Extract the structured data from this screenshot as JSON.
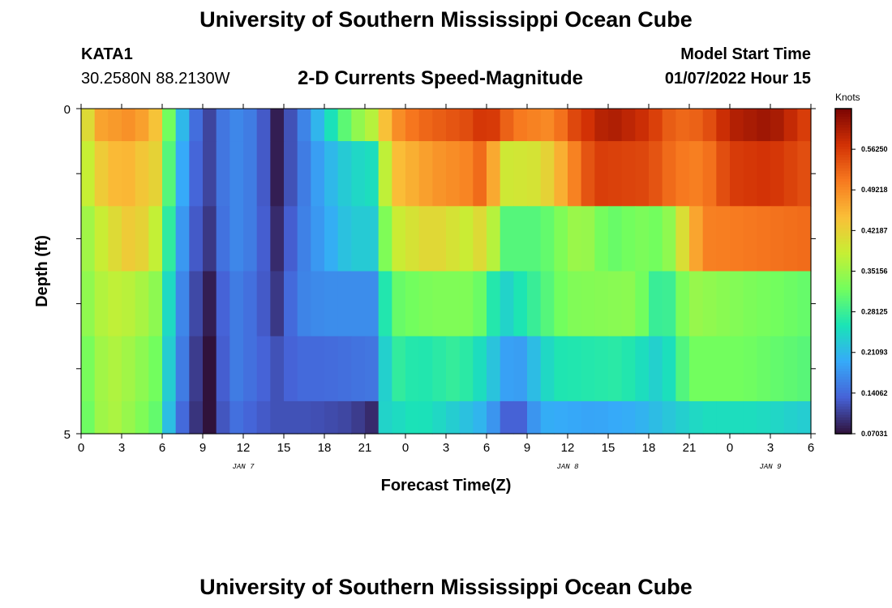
{
  "page": {
    "title": "University of Southern Mississippi Ocean Cube",
    "station": "KATA1",
    "coords": "30.2580N  88.2130W",
    "subtitle": "2-D Currents Speed-Magnitude",
    "model_label": "Model Start Time",
    "model_time": "01/07/2022 Hour 15",
    "bottom_title": "University of Southern Mississippi Ocean Cube"
  },
  "chart_data": {
    "type": "heatmap",
    "title": "2-D Currents Speed-Magnitude",
    "xlabel": "Forecast Time(Z)",
    "ylabel": "Depth (ft)",
    "x_ticks": [
      "0",
      "3",
      "6",
      "9",
      "12",
      "15",
      "18",
      "21",
      "0",
      "3",
      "6",
      "9",
      "12",
      "15",
      "18",
      "21",
      "0",
      "3",
      "6"
    ],
    "date_labels": [
      {
        "label": "JAN 7",
        "hour_index": 12
      },
      {
        "label": "JAN 8",
        "hour_index": 36
      },
      {
        "label": "JAN 9",
        "hour_index": 51
      }
    ],
    "x_range_hours": [
      0,
      54
    ],
    "y_ticks": [
      "0",
      "5"
    ],
    "y_range": [
      0,
      5
    ],
    "colorbar": {
      "title": "Knots",
      "ticks": [
        "0.56250",
        "0.49218",
        "0.42187",
        "0.35156",
        "0.28125",
        "0.21093",
        "0.14062",
        "0.07031"
      ],
      "range": [
        0.0703,
        0.6328
      ],
      "colors": [
        "#30123b",
        "#4662d7",
        "#36aaf9",
        "#1ae4b6",
        "#72fe5e",
        "#c7ef34",
        "#fabf38",
        "#f7791f",
        "#d23105",
        "#7a0403"
      ]
    },
    "depth_rows": [
      {
        "depth": 0,
        "keyframes": [
          [
            0,
            0.38
          ],
          [
            1.5,
            0.47
          ],
          [
            4,
            0.49
          ],
          [
            5.5,
            0.44
          ],
          [
            7,
            0.26
          ],
          [
            8,
            0.16
          ],
          [
            9.5,
            0.11
          ],
          [
            11,
            0.17
          ],
          [
            13,
            0.15
          ],
          [
            14.5,
            0.08
          ],
          [
            16,
            0.14
          ],
          [
            18,
            0.23
          ],
          [
            20,
            0.33
          ],
          [
            21.5,
            0.37
          ],
          [
            23,
            0.48
          ],
          [
            25,
            0.52
          ],
          [
            29,
            0.55
          ],
          [
            30,
            0.58
          ],
          [
            32,
            0.51
          ],
          [
            35,
            0.49
          ],
          [
            36,
            0.54
          ],
          [
            39,
            0.6
          ],
          [
            42,
            0.57
          ],
          [
            44,
            0.52
          ],
          [
            46,
            0.53
          ],
          [
            48,
            0.59
          ],
          [
            51,
            0.61
          ],
          [
            54,
            0.55
          ]
        ]
      },
      {
        "depth": 1,
        "keyframes": [
          [
            0,
            0.36
          ],
          [
            1.5,
            0.43
          ],
          [
            3,
            0.46
          ],
          [
            5.5,
            0.42
          ],
          [
            7,
            0.24
          ],
          [
            8,
            0.15
          ],
          [
            9.5,
            0.11
          ],
          [
            11,
            0.17
          ],
          [
            13,
            0.15
          ],
          [
            14.5,
            0.08
          ],
          [
            16,
            0.14
          ],
          [
            18,
            0.2
          ],
          [
            20,
            0.24
          ],
          [
            21.5,
            0.25
          ],
          [
            23,
            0.44
          ],
          [
            26,
            0.48
          ],
          [
            29,
            0.5
          ],
          [
            30,
            0.54
          ],
          [
            31,
            0.39
          ],
          [
            34,
            0.4
          ],
          [
            36,
            0.48
          ],
          [
            38,
            0.56
          ],
          [
            42,
            0.55
          ],
          [
            44,
            0.51
          ],
          [
            46,
            0.5
          ],
          [
            48,
            0.56
          ],
          [
            51,
            0.57
          ],
          [
            54,
            0.54
          ]
        ]
      },
      {
        "depth": 2,
        "keyframes": [
          [
            0,
            0.34
          ],
          [
            2,
            0.4
          ],
          [
            4,
            0.44
          ],
          [
            5.5,
            0.38
          ],
          [
            7,
            0.22
          ],
          [
            8,
            0.14
          ],
          [
            9.5,
            0.1
          ],
          [
            11,
            0.17
          ],
          [
            13,
            0.15
          ],
          [
            14.5,
            0.09
          ],
          [
            16,
            0.15
          ],
          [
            18,
            0.19
          ],
          [
            20,
            0.23
          ],
          [
            21.5,
            0.23
          ],
          [
            23,
            0.38
          ],
          [
            26,
            0.42
          ],
          [
            29,
            0.38
          ],
          [
            30,
            0.44
          ],
          [
            31,
            0.3
          ],
          [
            34,
            0.3
          ],
          [
            37,
            0.36
          ],
          [
            39,
            0.31
          ],
          [
            42,
            0.33
          ],
          [
            43,
            0.31
          ],
          [
            46,
            0.5
          ],
          [
            50,
            0.51
          ],
          [
            54,
            0.52
          ]
        ]
      },
      {
        "depth": 3,
        "keyframes": [
          [
            0,
            0.33
          ],
          [
            2,
            0.38
          ],
          [
            4,
            0.37
          ],
          [
            5.5,
            0.34
          ],
          [
            7,
            0.2
          ],
          [
            8,
            0.13
          ],
          [
            9.5,
            0.08
          ],
          [
            11,
            0.16
          ],
          [
            13,
            0.14
          ],
          [
            14.5,
            0.1
          ],
          [
            16,
            0.16
          ],
          [
            18,
            0.17
          ],
          [
            21.5,
            0.17
          ],
          [
            23,
            0.31
          ],
          [
            26,
            0.33
          ],
          [
            29,
            0.33
          ],
          [
            30,
            0.3
          ],
          [
            31,
            0.23
          ],
          [
            33,
            0.27
          ],
          [
            36,
            0.33
          ],
          [
            41,
            0.34
          ],
          [
            43,
            0.26
          ],
          [
            45,
            0.35
          ],
          [
            49,
            0.33
          ],
          [
            54,
            0.31
          ]
        ]
      },
      {
        "depth": 4,
        "keyframes": [
          [
            0,
            0.31
          ],
          [
            2,
            0.37
          ],
          [
            4,
            0.35
          ],
          [
            5.5,
            0.32
          ],
          [
            7,
            0.19
          ],
          [
            8,
            0.12
          ],
          [
            9.5,
            0.07
          ],
          [
            11,
            0.16
          ],
          [
            13,
            0.14
          ],
          [
            14.5,
            0.12
          ],
          [
            16,
            0.14
          ],
          [
            18,
            0.14
          ],
          [
            21.5,
            0.15
          ],
          [
            23,
            0.28
          ],
          [
            25,
            0.26
          ],
          [
            28,
            0.28
          ],
          [
            30,
            0.24
          ],
          [
            32,
            0.17
          ],
          [
            35,
            0.26
          ],
          [
            40,
            0.27
          ],
          [
            43,
            0.23
          ],
          [
            45,
            0.32
          ],
          [
            49,
            0.32
          ],
          [
            54,
            0.3
          ]
        ]
      },
      {
        "depth": 5,
        "keyframes": [
          [
            0,
            0.3
          ],
          [
            2,
            0.37
          ],
          [
            4,
            0.34
          ],
          [
            5.5,
            0.31
          ],
          [
            7,
            0.17
          ],
          [
            8,
            0.11
          ],
          [
            9.5,
            0.07
          ],
          [
            11,
            0.15
          ],
          [
            13,
            0.13
          ],
          [
            14.5,
            0.12
          ],
          [
            17,
            0.12
          ],
          [
            20,
            0.11
          ],
          [
            21.5,
            0.09
          ],
          [
            22.5,
            0.24
          ],
          [
            25,
            0.26
          ],
          [
            27,
            0.24
          ],
          [
            30,
            0.2
          ],
          [
            32,
            0.11
          ],
          [
            34,
            0.2
          ],
          [
            38,
            0.19
          ],
          [
            41,
            0.2
          ],
          [
            43,
            0.22
          ],
          [
            46,
            0.25
          ],
          [
            50,
            0.25
          ],
          [
            54,
            0.23
          ]
        ]
      }
    ]
  }
}
